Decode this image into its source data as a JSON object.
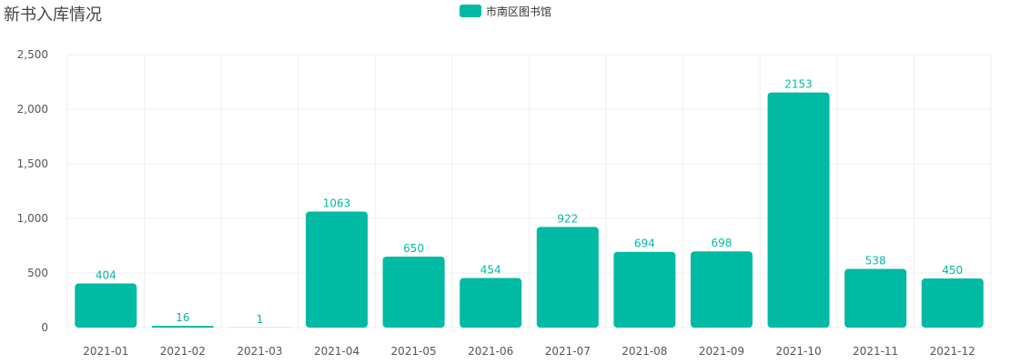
{
  "colors": {
    "bar": "#00BAA3",
    "grid": "#EFEFEF",
    "axis_text": "#555555",
    "title": "#444444"
  },
  "chart_data": {
    "type": "bar",
    "title": "新书入库情况",
    "xlabel": "",
    "ylabel": "",
    "ylim": [
      0,
      2500
    ],
    "yticks": [
      0,
      500,
      1000,
      1500,
      2000,
      2500
    ],
    "ytick_labels": [
      "0",
      "500",
      "1,000",
      "1,500",
      "2,000",
      "2,500"
    ],
    "categories": [
      "2021-01",
      "2021-02",
      "2021-03",
      "2021-04",
      "2021-05",
      "2021-06",
      "2021-07",
      "2021-08",
      "2021-09",
      "2021-10",
      "2021-11",
      "2021-12"
    ],
    "series": [
      {
        "name": "市南区图书馆",
        "values": [
          404,
          16,
          1,
          1063,
          650,
          454,
          922,
          694,
          698,
          2153,
          538,
          450
        ]
      }
    ],
    "grid": true,
    "legend_position": "top-center",
    "data_labels": true
  }
}
